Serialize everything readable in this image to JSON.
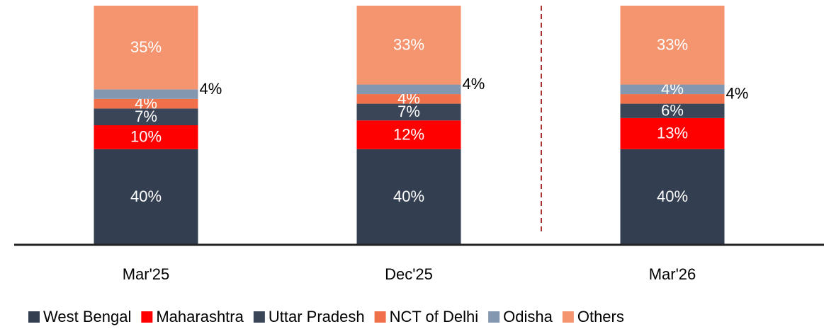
{
  "chart_data": {
    "type": "stacked_bar",
    "categories": [
      "Mar'25",
      "Dec'25",
      "Mar'26"
    ],
    "ylim": [
      0,
      100
    ],
    "legend": "bottom",
    "series": [
      {
        "name": "West Bengal",
        "color": "#333f50",
        "values": [
          40,
          40,
          40
        ],
        "value_labels": [
          "40%",
          "40%",
          "40%"
        ]
      },
      {
        "name": "Maharashtra",
        "color": "#ff0000",
        "values": [
          10,
          12,
          13
        ],
        "value_labels": [
          "10%",
          "12%",
          "13%"
        ]
      },
      {
        "name": "Uttar Pradesh",
        "color": "#3a4557",
        "values": [
          7,
          7,
          6
        ],
        "value_labels": [
          "7%",
          "7%",
          "6%"
        ]
      },
      {
        "name": "NCT of Delhi",
        "color": "#f0704a",
        "values": [
          4,
          4,
          4
        ],
        "value_labels": [
          "4%",
          "4%",
          "4%"
        ]
      },
      {
        "name": "Odisha",
        "color": "#8497b0",
        "values": [
          4,
          4,
          4
        ],
        "value_labels": [
          "4%",
          "4%",
          "4%"
        ]
      },
      {
        "name": "Others",
        "color": "#f4956f",
        "values": [
          35,
          33,
          33
        ],
        "value_labels": [
          "35%",
          "33%",
          "33%"
        ]
      }
    ]
  }
}
